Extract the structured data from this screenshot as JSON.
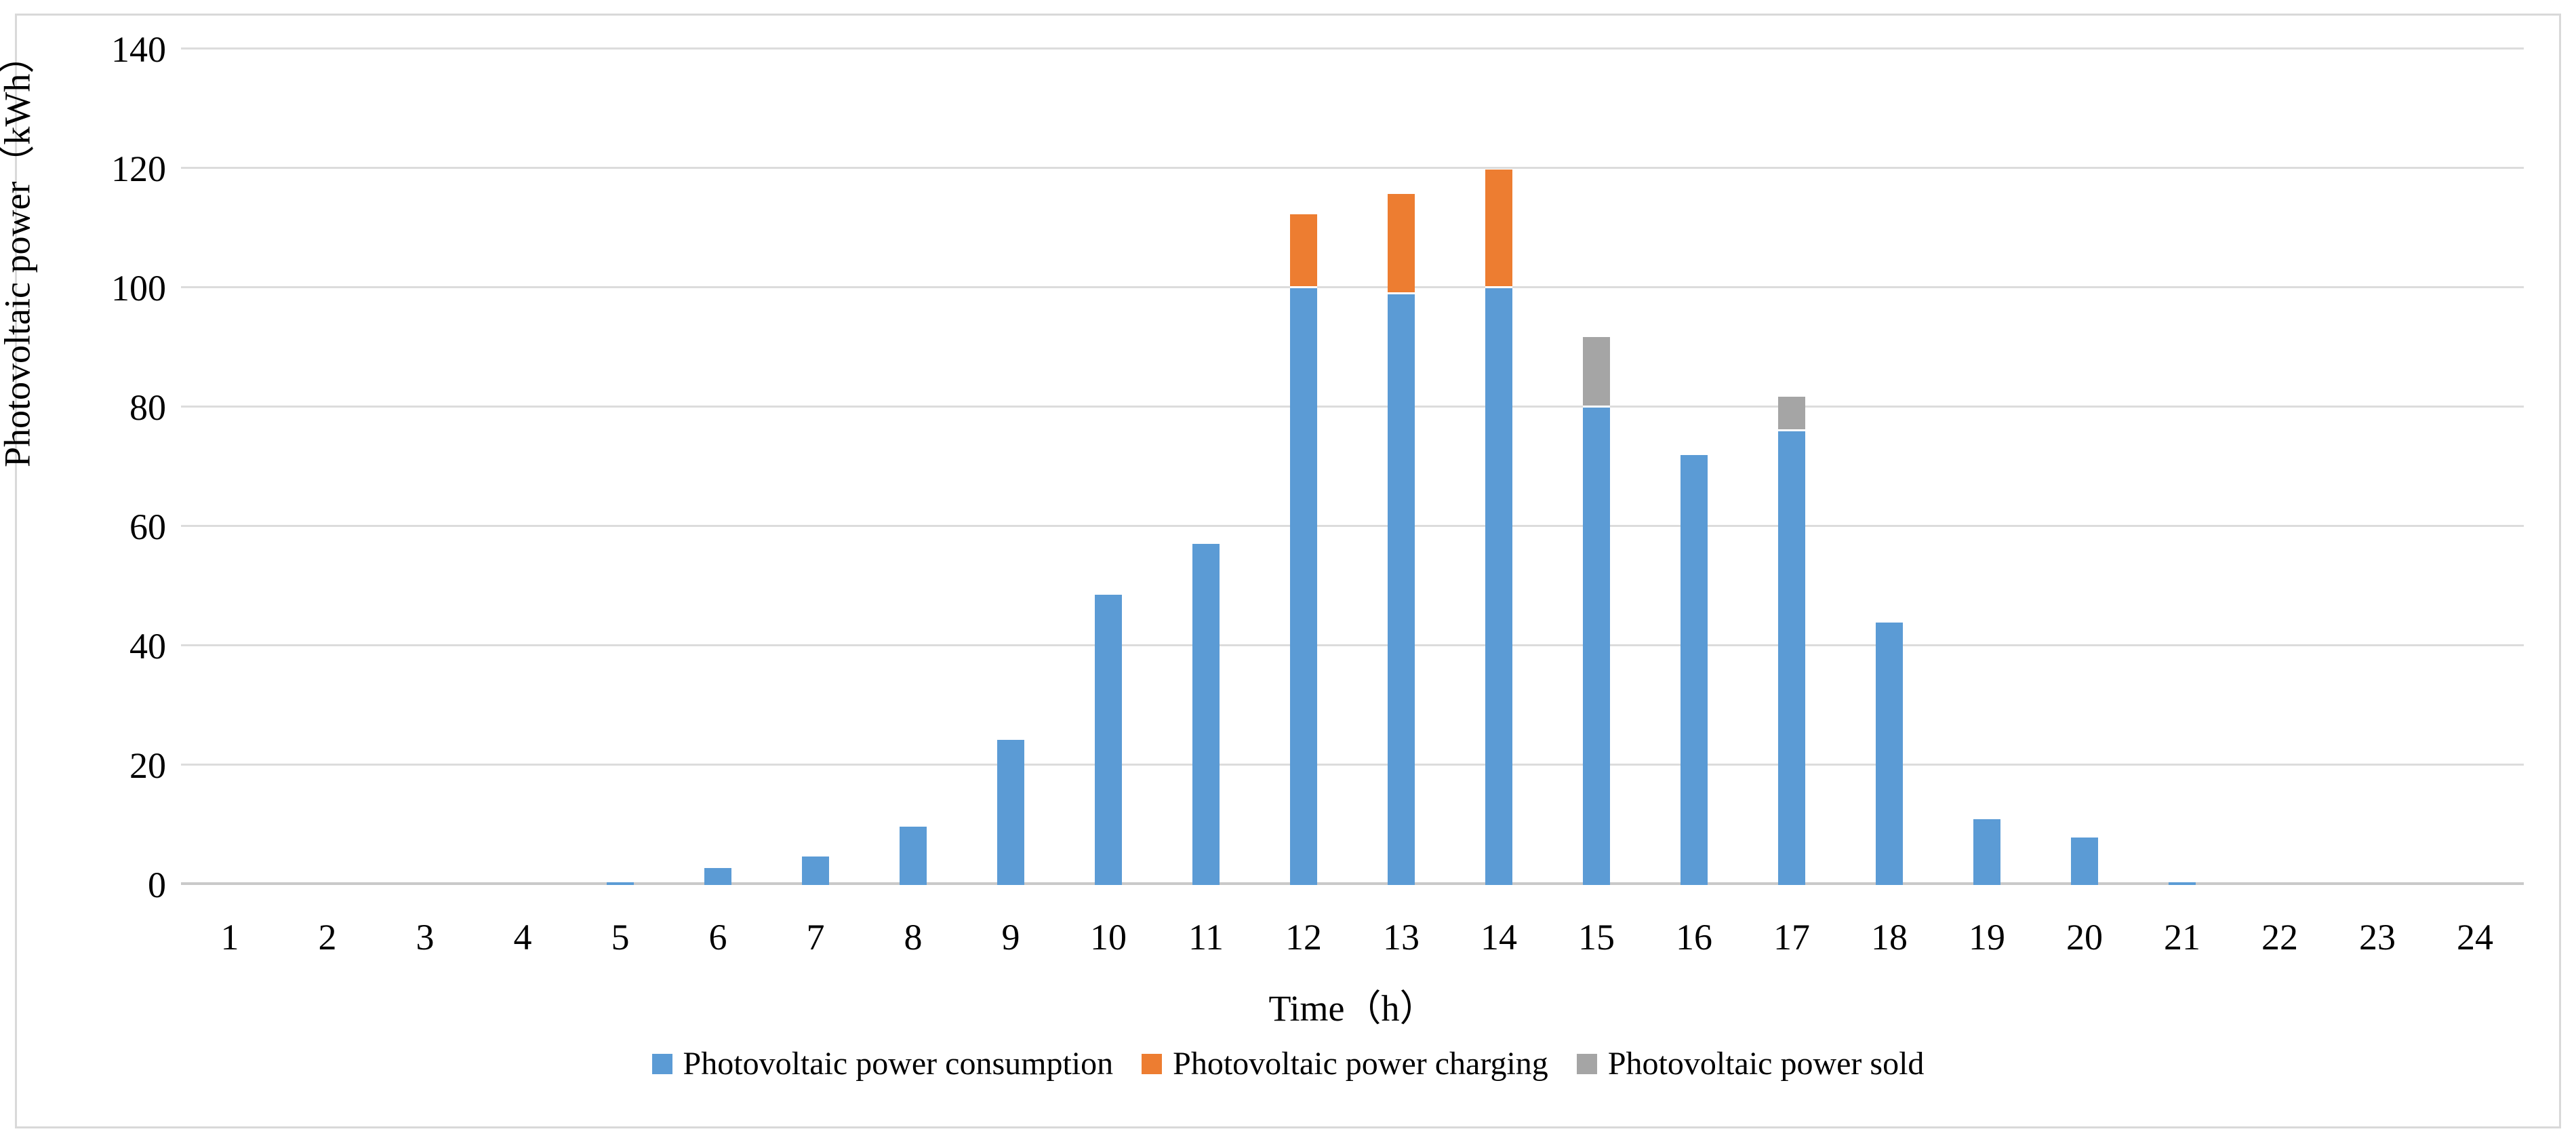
{
  "chart_data": {
    "type": "bar",
    "stacked": true,
    "title": "",
    "xlabel": "Time（h）",
    "ylabel": "Photovoltaic power（kWh）",
    "categories": [
      1,
      2,
      3,
      4,
      5,
      6,
      7,
      8,
      9,
      10,
      11,
      12,
      13,
      14,
      15,
      16,
      17,
      18,
      19,
      20,
      21,
      22,
      23,
      24
    ],
    "series": [
      {
        "name": "Photovoltaic power consumption",
        "color": "#5B9BD5",
        "values": [
          0,
          0,
          0,
          0,
          0.5,
          2.8,
          4.8,
          9.8,
          24.3,
          48.6,
          57.2,
          100,
          99,
          100,
          80,
          72,
          76,
          44,
          11,
          8,
          0.5,
          0,
          0,
          0
        ]
      },
      {
        "name": "Photovoltaic power charging",
        "color": "#ED7D31",
        "values": [
          0,
          0,
          0,
          0,
          0,
          0,
          0,
          0,
          0,
          0,
          0,
          12,
          16.5,
          19.5,
          0,
          0,
          0,
          0,
          0,
          0,
          0,
          0,
          0,
          0
        ]
      },
      {
        "name": "Photovoltaic power sold",
        "color": "#A5A5A5",
        "values": [
          0,
          0,
          0,
          0,
          0,
          0,
          0,
          0,
          0,
          0,
          0,
          0,
          0,
          0,
          11.5,
          0,
          5.5,
          0,
          0,
          0,
          0,
          0,
          0,
          0
        ]
      }
    ],
    "ylim": [
      0,
      140
    ],
    "yticks": [
      0,
      20,
      40,
      60,
      80,
      100,
      120,
      140
    ],
    "grid": true,
    "legend_position": "bottom"
  }
}
